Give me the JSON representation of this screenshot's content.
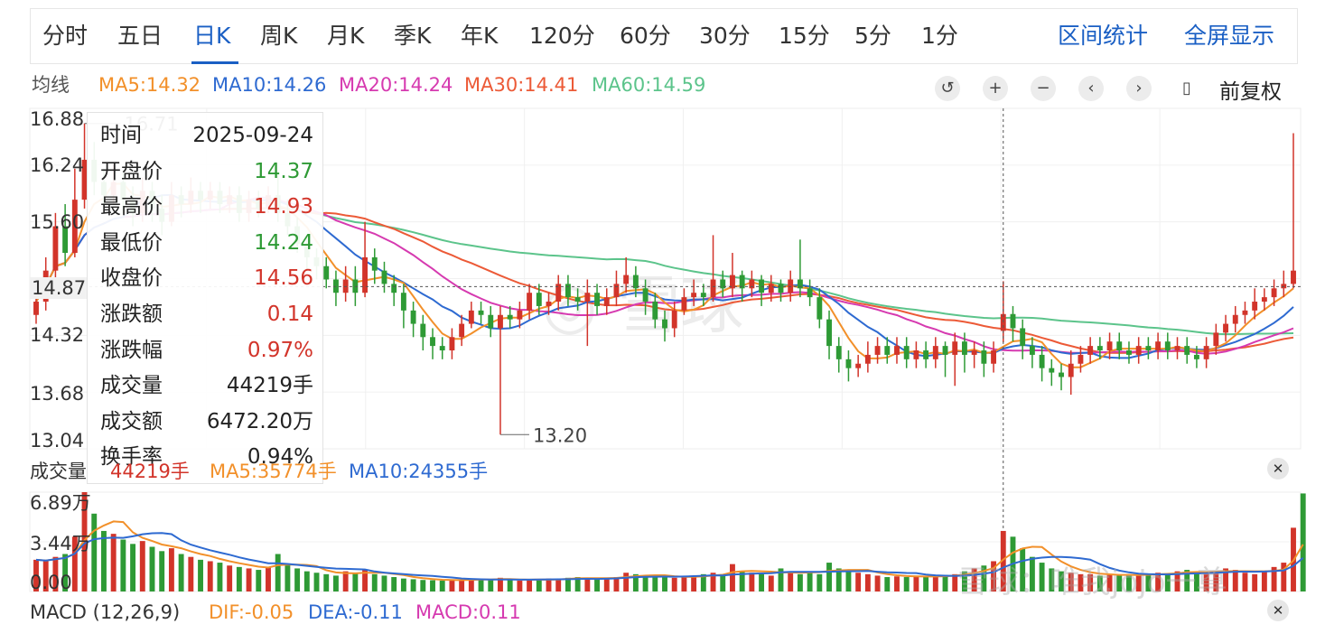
{
  "tabs": [
    "分时",
    "五日",
    "日K",
    "周K",
    "月K",
    "季K",
    "年K",
    "120分",
    "60分",
    "30分",
    "15分",
    "5分",
    "1分"
  ],
  "active_tab": "日K",
  "right_links": [
    "区间统计",
    "全屏显示"
  ],
  "ma_header": {
    "label": "均线",
    "items": [
      {
        "text": "MA5:14.32",
        "color": "#f2902a"
      },
      {
        "text": "MA10:14.26",
        "color": "#2e6ad1"
      },
      {
        "text": "MA20:14.24",
        "color": "#d63ab0"
      },
      {
        "text": "MA30:14.41",
        "color": "#ec5a37"
      },
      {
        "text": "MA60:14.59",
        "color": "#5cc48b"
      }
    ]
  },
  "controls": [
    {
      "name": "reset-icon",
      "glyph": "↺"
    },
    {
      "name": "zoom-in-icon",
      "glyph": "+"
    },
    {
      "name": "zoom-out-icon",
      "glyph": "−"
    },
    {
      "name": "chevron-left-icon",
      "glyph": "‹"
    },
    {
      "name": "chevron-right-icon",
      "glyph": "›"
    },
    {
      "name": "candle-icon",
      "glyph": "▯"
    }
  ],
  "adjust_label": "前复权",
  "y_axis_labels": [
    "16.88",
    "16.24",
    "15.60",
    "14.87",
    "14.32",
    "13.68",
    "13.04"
  ],
  "crosshair_price": "14.87",
  "max_label": "16.71",
  "min_label": "13.20",
  "tooltip": [
    {
      "k": "时间",
      "v": "2025-09-24",
      "color": "#222"
    },
    {
      "k": "开盘价",
      "v": "14.37",
      "color": "#2e9a35"
    },
    {
      "k": "最高价",
      "v": "14.93",
      "color": "#d2342a"
    },
    {
      "k": "最低价",
      "v": "14.24",
      "color": "#2e9a35"
    },
    {
      "k": "收盘价",
      "v": "14.56",
      "color": "#d2342a"
    },
    {
      "k": "涨跌额",
      "v": "0.14",
      "color": "#d2342a"
    },
    {
      "k": "涨跌幅",
      "v": "0.97%",
      "color": "#d2342a"
    },
    {
      "k": "成交量",
      "v": "44219手",
      "color": "#222"
    },
    {
      "k": "成交额",
      "v": "6472.20万",
      "color": "#222"
    },
    {
      "k": "换手率",
      "v": "0.94%",
      "color": "#222"
    }
  ],
  "volume_header": {
    "label": "成交量",
    "vol": "44219手",
    "ma5": "MA5:35774手",
    "ma10": "MA10:24355手"
  },
  "volume_y_labels": [
    "6.89万",
    "3.44万",
    "0.00"
  ],
  "macd_header": {
    "label": "MACD (12,26,9)",
    "dif": "DIF:-0.05",
    "dea": "DEA:-0.11",
    "macd": "MACD:0.11"
  },
  "watermark": "雪球：唯我jojo一尊",
  "colors": {
    "up": "#d2342a",
    "down": "#2e9a35",
    "accent": "#1a5fc4"
  },
  "chart_data": {
    "type": "candlestick",
    "ylim": [
      13.04,
      16.88
    ],
    "candles": [
      {
        "o": 14.55,
        "c": 14.7,
        "h": 14.85,
        "l": 14.45
      },
      {
        "o": 14.7,
        "c": 15.05,
        "h": 15.2,
        "l": 14.6
      },
      {
        "o": 15.05,
        "c": 15.55,
        "h": 15.7,
        "l": 14.95
      },
      {
        "o": 15.55,
        "c": 15.25,
        "h": 15.8,
        "l": 15.1
      },
      {
        "o": 15.25,
        "c": 15.85,
        "h": 16.2,
        "l": 15.2
      },
      {
        "o": 15.85,
        "c": 16.3,
        "h": 16.71,
        "l": 15.75
      },
      {
        "o": 16.3,
        "c": 16.05,
        "h": 16.5,
        "l": 15.9
      },
      {
        "o": 16.05,
        "c": 15.9,
        "h": 16.2,
        "l": 15.7
      },
      {
        "o": 15.9,
        "c": 16.05,
        "h": 16.25,
        "l": 15.8
      },
      {
        "o": 16.05,
        "c": 15.85,
        "h": 16.15,
        "l": 15.7
      },
      {
        "o": 15.85,
        "c": 15.7,
        "h": 16.0,
        "l": 15.55
      },
      {
        "o": 15.7,
        "c": 15.95,
        "h": 16.1,
        "l": 15.6
      },
      {
        "o": 15.95,
        "c": 15.75,
        "h": 16.05,
        "l": 15.6
      },
      {
        "o": 15.75,
        "c": 15.6,
        "h": 15.9,
        "l": 15.45
      },
      {
        "o": 15.6,
        "c": 15.9,
        "h": 16.05,
        "l": 15.55
      },
      {
        "o": 15.9,
        "c": 15.8,
        "h": 16.0,
        "l": 15.65
      },
      {
        "o": 15.8,
        "c": 15.95,
        "h": 16.1,
        "l": 15.7
      },
      {
        "o": 15.95,
        "c": 15.85,
        "h": 16.05,
        "l": 15.7
      },
      {
        "o": 15.85,
        "c": 15.95,
        "h": 16.05,
        "l": 15.75
      },
      {
        "o": 15.95,
        "c": 15.8,
        "h": 16.05,
        "l": 15.7
      },
      {
        "o": 15.8,
        "c": 15.9,
        "h": 16.0,
        "l": 15.7
      },
      {
        "o": 15.9,
        "c": 15.7,
        "h": 16.0,
        "l": 15.6
      },
      {
        "o": 15.7,
        "c": 15.85,
        "h": 15.95,
        "l": 15.6
      },
      {
        "o": 15.85,
        "c": 15.75,
        "h": 15.95,
        "l": 15.65
      },
      {
        "o": 15.75,
        "c": 15.9,
        "h": 16.0,
        "l": 15.7
      },
      {
        "o": 15.9,
        "c": 15.7,
        "h": 16.15,
        "l": 15.6
      },
      {
        "o": 15.7,
        "c": 15.55,
        "h": 15.85,
        "l": 15.45
      },
      {
        "o": 15.55,
        "c": 15.35,
        "h": 15.65,
        "l": 15.25
      },
      {
        "o": 15.35,
        "c": 15.2,
        "h": 15.45,
        "l": 15.05
      },
      {
        "o": 15.2,
        "c": 15.1,
        "h": 15.3,
        "l": 14.95
      },
      {
        "o": 15.1,
        "c": 14.95,
        "h": 15.2,
        "l": 14.85
      },
      {
        "o": 14.95,
        "c": 14.8,
        "h": 15.05,
        "l": 14.65
      },
      {
        "o": 14.8,
        "c": 14.95,
        "h": 15.1,
        "l": 14.7
      },
      {
        "o": 14.95,
        "c": 14.8,
        "h": 15.1,
        "l": 14.65
      },
      {
        "o": 14.8,
        "c": 15.2,
        "h": 15.6,
        "l": 14.75
      },
      {
        "o": 15.2,
        "c": 15.05,
        "h": 15.3,
        "l": 14.9
      },
      {
        "o": 15.05,
        "c": 14.9,
        "h": 15.15,
        "l": 14.8
      },
      {
        "o": 14.9,
        "c": 14.8,
        "h": 15.0,
        "l": 14.65
      },
      {
        "o": 14.8,
        "c": 14.6,
        "h": 14.9,
        "l": 14.4
      },
      {
        "o": 14.6,
        "c": 14.45,
        "h": 14.7,
        "l": 14.3
      },
      {
        "o": 14.45,
        "c": 14.3,
        "h": 14.55,
        "l": 14.15
      },
      {
        "o": 14.3,
        "c": 14.2,
        "h": 14.4,
        "l": 14.05
      },
      {
        "o": 14.2,
        "c": 14.15,
        "h": 14.3,
        "l": 14.05
      },
      {
        "o": 14.15,
        "c": 14.3,
        "h": 14.4,
        "l": 14.05
      },
      {
        "o": 14.3,
        "c": 14.45,
        "h": 14.55,
        "l": 14.2
      },
      {
        "o": 14.45,
        "c": 14.6,
        "h": 14.7,
        "l": 14.4
      },
      {
        "o": 14.6,
        "c": 14.55,
        "h": 14.7,
        "l": 14.45
      },
      {
        "o": 14.55,
        "c": 14.4,
        "h": 14.65,
        "l": 14.3
      },
      {
        "o": 14.4,
        "c": 14.55,
        "h": 14.65,
        "l": 13.2
      },
      {
        "o": 14.55,
        "c": 14.5,
        "h": 14.65,
        "l": 14.4
      },
      {
        "o": 14.5,
        "c": 14.6,
        "h": 14.7,
        "l": 14.4
      },
      {
        "o": 14.6,
        "c": 14.8,
        "h": 14.9,
        "l": 14.5
      },
      {
        "o": 14.8,
        "c": 14.65,
        "h": 14.9,
        "l": 14.55
      },
      {
        "o": 14.65,
        "c": 14.7,
        "h": 14.8,
        "l": 14.55
      },
      {
        "o": 14.7,
        "c": 14.9,
        "h": 15.0,
        "l": 14.6
      },
      {
        "o": 14.9,
        "c": 14.75,
        "h": 15.0,
        "l": 14.65
      },
      {
        "o": 14.75,
        "c": 14.7,
        "h": 14.85,
        "l": 14.6
      },
      {
        "o": 14.7,
        "c": 14.8,
        "h": 14.95,
        "l": 14.2
      },
      {
        "o": 14.8,
        "c": 14.65,
        "h": 14.9,
        "l": 14.55
      },
      {
        "o": 14.65,
        "c": 14.75,
        "h": 14.85,
        "l": 14.55
      },
      {
        "o": 14.75,
        "c": 14.9,
        "h": 15.05,
        "l": 14.65
      },
      {
        "o": 14.9,
        "c": 15.0,
        "h": 15.2,
        "l": 14.8
      },
      {
        "o": 15.0,
        "c": 14.85,
        "h": 15.1,
        "l": 14.75
      },
      {
        "o": 14.85,
        "c": 14.7,
        "h": 14.95,
        "l": 14.55
      },
      {
        "o": 14.7,
        "c": 14.5,
        "h": 14.8,
        "l": 14.4
      },
      {
        "o": 14.5,
        "c": 14.4,
        "h": 14.6,
        "l": 14.25
      },
      {
        "o": 14.4,
        "c": 14.6,
        "h": 14.7,
        "l": 14.3
      },
      {
        "o": 14.6,
        "c": 14.75,
        "h": 14.85,
        "l": 14.55
      },
      {
        "o": 14.75,
        "c": 14.8,
        "h": 14.95,
        "l": 14.65
      },
      {
        "o": 14.8,
        "c": 14.75,
        "h": 14.9,
        "l": 14.65
      },
      {
        "o": 14.75,
        "c": 14.95,
        "h": 15.45,
        "l": 14.7
      },
      {
        "o": 14.95,
        "c": 14.85,
        "h": 15.05,
        "l": 14.75
      },
      {
        "o": 14.85,
        "c": 15.0,
        "h": 15.25,
        "l": 14.75
      },
      {
        "o": 15.0,
        "c": 14.85,
        "h": 15.05,
        "l": 14.7
      },
      {
        "o": 14.85,
        "c": 14.95,
        "h": 15.05,
        "l": 14.75
      },
      {
        "o": 14.95,
        "c": 14.8,
        "h": 15.0,
        "l": 14.65
      },
      {
        "o": 14.8,
        "c": 14.9,
        "h": 15.0,
        "l": 14.7
      },
      {
        "o": 14.9,
        "c": 14.8,
        "h": 14.95,
        "l": 14.7
      },
      {
        "o": 14.8,
        "c": 14.95,
        "h": 15.05,
        "l": 14.7
      },
      {
        "o": 14.95,
        "c": 14.85,
        "h": 15.4,
        "l": 14.75
      },
      {
        "o": 14.85,
        "c": 14.75,
        "h": 14.95,
        "l": 14.65
      },
      {
        "o": 14.75,
        "c": 14.5,
        "h": 14.85,
        "l": 14.4
      },
      {
        "o": 14.5,
        "c": 14.2,
        "h": 14.6,
        "l": 14.05
      },
      {
        "o": 14.2,
        "c": 14.05,
        "h": 14.3,
        "l": 13.9
      },
      {
        "o": 14.05,
        "c": 13.95,
        "h": 14.15,
        "l": 13.8
      },
      {
        "o": 13.95,
        "c": 14.0,
        "h": 14.1,
        "l": 13.85
      },
      {
        "o": 14.0,
        "c": 14.1,
        "h": 14.25,
        "l": 13.9
      },
      {
        "o": 14.1,
        "c": 14.2,
        "h": 14.3,
        "l": 14.0
      },
      {
        "o": 14.2,
        "c": 14.1,
        "h": 14.3,
        "l": 14.0
      },
      {
        "o": 14.1,
        "c": 14.2,
        "h": 14.3,
        "l": 14.0
      },
      {
        "o": 14.2,
        "c": 14.05,
        "h": 14.3,
        "l": 13.95
      },
      {
        "o": 14.05,
        "c": 14.15,
        "h": 14.25,
        "l": 13.95
      },
      {
        "o": 14.15,
        "c": 14.05,
        "h": 14.25,
        "l": 13.95
      },
      {
        "o": 14.05,
        "c": 14.2,
        "h": 14.3,
        "l": 13.95
      },
      {
        "o": 14.2,
        "c": 14.1,
        "h": 14.25,
        "l": 13.85
      },
      {
        "o": 14.1,
        "c": 14.25,
        "h": 14.35,
        "l": 13.75
      },
      {
        "o": 14.25,
        "c": 14.1,
        "h": 14.35,
        "l": 13.9
      },
      {
        "o": 14.1,
        "c": 14.15,
        "h": 14.25,
        "l": 13.95
      },
      {
        "o": 14.15,
        "c": 14.0,
        "h": 14.25,
        "l": 13.85
      },
      {
        "o": 14.0,
        "c": 14.15,
        "h": 14.25,
        "l": 13.9
      },
      {
        "o": 14.37,
        "c": 14.56,
        "h": 14.93,
        "l": 14.24
      },
      {
        "o": 14.56,
        "c": 14.4,
        "h": 14.65,
        "l": 14.25
      },
      {
        "o": 14.4,
        "c": 14.2,
        "h": 14.5,
        "l": 14.05
      },
      {
        "o": 14.2,
        "c": 14.1,
        "h": 14.3,
        "l": 13.95
      },
      {
        "o": 14.1,
        "c": 13.95,
        "h": 14.2,
        "l": 13.8
      },
      {
        "o": 13.95,
        "c": 13.9,
        "h": 14.05,
        "l": 13.75
      },
      {
        "o": 13.9,
        "c": 13.85,
        "h": 14.0,
        "l": 13.7
      },
      {
        "o": 13.85,
        "c": 14.0,
        "h": 14.15,
        "l": 13.65
      },
      {
        "o": 14.0,
        "c": 14.1,
        "h": 14.2,
        "l": 13.9
      },
      {
        "o": 14.1,
        "c": 14.2,
        "h": 14.3,
        "l": 14.0
      },
      {
        "o": 14.2,
        "c": 14.15,
        "h": 14.3,
        "l": 14.05
      },
      {
        "o": 14.15,
        "c": 14.25,
        "h": 14.35,
        "l": 14.05
      },
      {
        "o": 14.25,
        "c": 14.15,
        "h": 14.35,
        "l": 14.05
      },
      {
        "o": 14.15,
        "c": 14.1,
        "h": 14.25,
        "l": 14.0
      },
      {
        "o": 14.1,
        "c": 14.2,
        "h": 14.3,
        "l": 14.0
      },
      {
        "o": 14.2,
        "c": 14.15,
        "h": 14.3,
        "l": 14.05
      },
      {
        "o": 14.15,
        "c": 14.25,
        "h": 14.35,
        "l": 14.05
      },
      {
        "o": 14.25,
        "c": 14.15,
        "h": 14.35,
        "l": 14.05
      },
      {
        "o": 14.15,
        "c": 14.2,
        "h": 14.3,
        "l": 14.05
      },
      {
        "o": 14.2,
        "c": 14.1,
        "h": 14.3,
        "l": 14.0
      },
      {
        "o": 14.1,
        "c": 14.05,
        "h": 14.2,
        "l": 13.95
      },
      {
        "o": 14.05,
        "c": 14.2,
        "h": 14.3,
        "l": 13.95
      },
      {
        "o": 14.2,
        "c": 14.35,
        "h": 14.45,
        "l": 14.1
      },
      {
        "o": 14.35,
        "c": 14.45,
        "h": 14.55,
        "l": 14.25
      },
      {
        "o": 14.45,
        "c": 14.55,
        "h": 14.65,
        "l": 14.35
      },
      {
        "o": 14.55,
        "c": 14.6,
        "h": 14.7,
        "l": 14.45
      },
      {
        "o": 14.6,
        "c": 14.7,
        "h": 14.85,
        "l": 14.5
      },
      {
        "o": 14.7,
        "c": 14.75,
        "h": 14.85,
        "l": 14.6
      },
      {
        "o": 14.75,
        "c": 14.85,
        "h": 14.95,
        "l": 14.65
      },
      {
        "o": 14.85,
        "c": 14.9,
        "h": 15.05,
        "l": 14.75
      },
      {
        "o": 14.9,
        "c": 15.05,
        "h": 16.6,
        "l": 14.85
      }
    ],
    "ma": [
      {
        "name": "MA5",
        "color": "#f2902a"
      },
      {
        "name": "MA10",
        "color": "#2e6ad1"
      },
      {
        "name": "MA20",
        "color": "#d63ab0"
      },
      {
        "name": "MA30",
        "color": "#ec5a37"
      },
      {
        "name": "MA60",
        "color": "#5cc48b"
      }
    ],
    "volume_ylim": [
      0,
      68900
    ],
    "volume": [
      22000,
      21000,
      24000,
      26000,
      38000,
      68900,
      54000,
      42000,
      40000,
      36000,
      33000,
      35000,
      31000,
      28000,
      30000,
      26000,
      24000,
      22000,
      21000,
      20000,
      18000,
      17000,
      16000,
      15000,
      17000,
      26000,
      19000,
      16000,
      14000,
      13000,
      12000,
      11000,
      14000,
      13000,
      15000,
      12000,
      11000,
      10000,
      9000,
      8500,
      8000,
      7800,
      7500,
      8000,
      8200,
      9000,
      8500,
      8000,
      9500,
      8000,
      7500,
      8000,
      8500,
      9000,
      8800,
      9500,
      10000,
      9000,
      8800,
      9200,
      10000,
      13000,
      12000,
      11000,
      10500,
      10000,
      9500,
      10000,
      11000,
      12000,
      13000,
      12000,
      19000,
      14000,
      13000,
      12000,
      11000,
      16000,
      14000,
      12000,
      13000,
      12000,
      20000,
      16000,
      14000,
      13000,
      12000,
      11000,
      10000,
      10500,
      10000,
      11000,
      10500,
      10000,
      11500,
      12000,
      14000,
      16000,
      18000,
      21000,
      42000,
      38000,
      30000,
      24000,
      20000,
      16000,
      14000,
      13000,
      12000,
      12000,
      11000,
      11500,
      11000,
      12000,
      11500,
      12000,
      13000,
      12500,
      14000,
      15000,
      13000,
      12500,
      14000,
      16000,
      15000,
      13000,
      12000,
      14000,
      17000,
      20000,
      44219,
      68000
    ]
  }
}
